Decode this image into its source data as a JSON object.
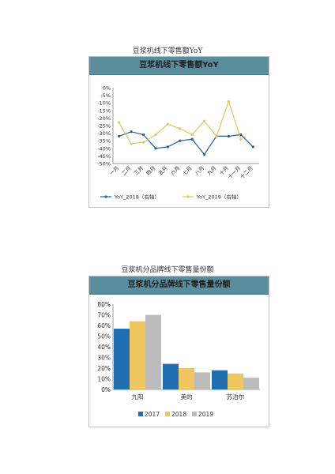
{
  "chart1": {
    "caption": "豆浆机线下零售额YoY",
    "title": "豆浆机线下零售额YoY",
    "chart_data": {
      "type": "line",
      "title": "豆浆机线下零售额YoY",
      "categories": [
        "一月",
        "二月",
        "三月",
        "四月",
        "五月",
        "六月",
        "七月",
        "八月",
        "九月",
        "十月",
        "十一月",
        "十二月"
      ],
      "yticks": [
        "0%",
        "-5%",
        "-10%",
        "-15%",
        "-20%",
        "-25%",
        "-30%",
        "-35%",
        "-40%",
        "-45%",
        "-50%"
      ],
      "ylim": [
        -50,
        0
      ],
      "series": [
        {
          "name": "YoY_2018（右轴）",
          "color": "#1f5f9f",
          "values": [
            -32,
            -29,
            -31,
            -40,
            -39,
            -35,
            -34,
            -44,
            -32,
            -32,
            -31,
            -39
          ]
        },
        {
          "name": "YoY_2019（右轴）",
          "color": "#e8c25a",
          "values": [
            -23,
            -37,
            -36,
            -31,
            -24,
            -27,
            -31,
            -22,
            -32,
            -9,
            -34,
            null
          ]
        }
      ],
      "grid": false,
      "legend": "bottom"
    }
  },
  "chart2": {
    "caption": "豆浆机分品牌线下零售量份额",
    "title": "豆浆机分品牌线下零售量份额",
    "chart_data": {
      "type": "bar",
      "title": "豆浆机分品牌线下零售量份额",
      "categories": [
        "九阳",
        "美的",
        "苏泊尔"
      ],
      "yticks": [
        "80%",
        "70%",
        "60%",
        "50%",
        "40%",
        "30%",
        "20%",
        "10%",
        "0%"
      ],
      "ylim": [
        0,
        80
      ],
      "series": [
        {
          "name": "2017",
          "color": "#1f6fb2",
          "values": [
            57,
            24,
            18
          ]
        },
        {
          "name": "2018",
          "color": "#f0c65e",
          "values": [
            64,
            20,
            15
          ]
        },
        {
          "name": "2019",
          "color": "#bcbcbc",
          "values": [
            70,
            16,
            11
          ]
        }
      ],
      "grid": false,
      "legend": "bottom"
    }
  }
}
